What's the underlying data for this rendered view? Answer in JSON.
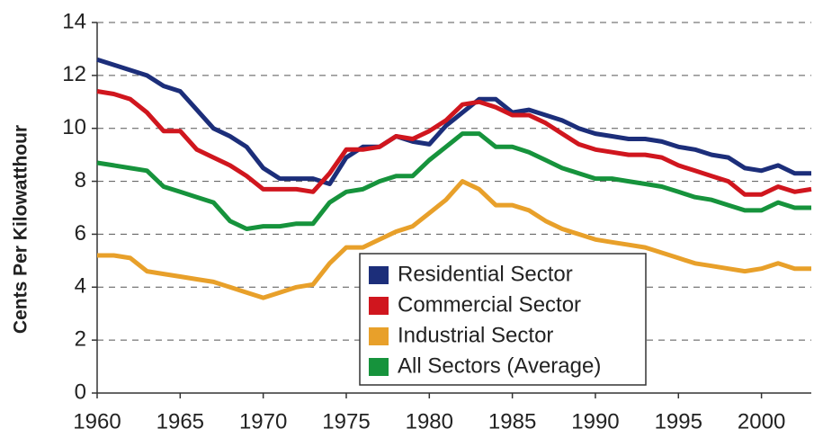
{
  "chart_data": {
    "type": "line",
    "ylabel": "Cents Per Kilowatthour",
    "x": [
      1960,
      1961,
      1962,
      1963,
      1964,
      1965,
      1966,
      1967,
      1968,
      1969,
      1970,
      1971,
      1972,
      1973,
      1974,
      1975,
      1976,
      1977,
      1978,
      1979,
      1980,
      1981,
      1982,
      1983,
      1984,
      1985,
      1986,
      1987,
      1988,
      1989,
      1990,
      1991,
      1992,
      1993,
      1994,
      1995,
      1996,
      1997,
      1998,
      1999,
      2000,
      2001,
      2002,
      2003
    ],
    "series": [
      {
        "name": "Residential Sector",
        "color": "#1c2e7a",
        "values": [
          12.6,
          12.4,
          12.2,
          12.0,
          11.6,
          11.4,
          10.7,
          10.0,
          9.7,
          9.3,
          8.5,
          8.1,
          8.1,
          8.1,
          7.9,
          8.9,
          9.3,
          9.3,
          9.7,
          9.5,
          9.4,
          10.1,
          10.6,
          11.1,
          11.1,
          10.6,
          10.7,
          10.5,
          10.3,
          10.0,
          9.8,
          9.7,
          9.6,
          9.6,
          9.5,
          9.3,
          9.2,
          9.0,
          8.9,
          8.5,
          8.4,
          8.6,
          8.3,
          8.3
        ]
      },
      {
        "name": "Commercial Sector",
        "color": "#d0161e",
        "values": [
          11.4,
          11.3,
          11.1,
          10.6,
          9.9,
          9.9,
          9.2,
          8.9,
          8.6,
          8.2,
          7.7,
          7.7,
          7.7,
          7.6,
          8.3,
          9.2,
          9.2,
          9.3,
          9.7,
          9.6,
          9.9,
          10.3,
          10.9,
          11.0,
          10.8,
          10.5,
          10.5,
          10.2,
          9.8,
          9.4,
          9.2,
          9.1,
          9.0,
          9.0,
          8.9,
          8.6,
          8.4,
          8.2,
          8.0,
          7.5,
          7.5,
          7.8,
          7.6,
          7.7
        ]
      },
      {
        "name": "Industrial Sector",
        "color": "#e8a02a",
        "values": [
          5.2,
          5.2,
          5.1,
          4.6,
          4.5,
          4.4,
          4.3,
          4.2,
          4.0,
          3.8,
          3.6,
          3.8,
          4.0,
          4.1,
          4.9,
          5.5,
          5.5,
          5.8,
          6.1,
          6.3,
          6.8,
          7.3,
          8.0,
          7.7,
          7.1,
          7.1,
          6.9,
          6.5,
          6.2,
          6.0,
          5.8,
          5.7,
          5.6,
          5.5,
          5.3,
          5.1,
          4.9,
          4.8,
          4.7,
          4.6,
          4.7,
          4.9,
          4.7,
          4.7
        ]
      },
      {
        "name": "All Sectors (Average)",
        "color": "#16933c",
        "values": [
          8.7,
          8.6,
          8.5,
          8.4,
          7.8,
          7.6,
          7.4,
          7.2,
          6.5,
          6.2,
          6.3,
          6.3,
          6.4,
          6.4,
          7.2,
          7.6,
          7.7,
          8.0,
          8.2,
          8.2,
          8.8,
          9.3,
          9.8,
          9.8,
          9.3,
          9.3,
          9.1,
          8.8,
          8.5,
          8.3,
          8.1,
          8.1,
          8.0,
          7.9,
          7.8,
          7.6,
          7.4,
          7.3,
          7.1,
          6.9,
          6.9,
          7.2,
          7.0,
          7.0
        ]
      }
    ],
    "xlim": [
      1960,
      2003
    ],
    "xticks": [
      1960,
      1965,
      1970,
      1975,
      1980,
      1985,
      1990,
      1995,
      2000
    ],
    "ylim": [
      0,
      14
    ],
    "yticks": [
      0,
      2,
      4,
      6,
      8,
      10,
      12,
      14
    ],
    "grid": true
  }
}
